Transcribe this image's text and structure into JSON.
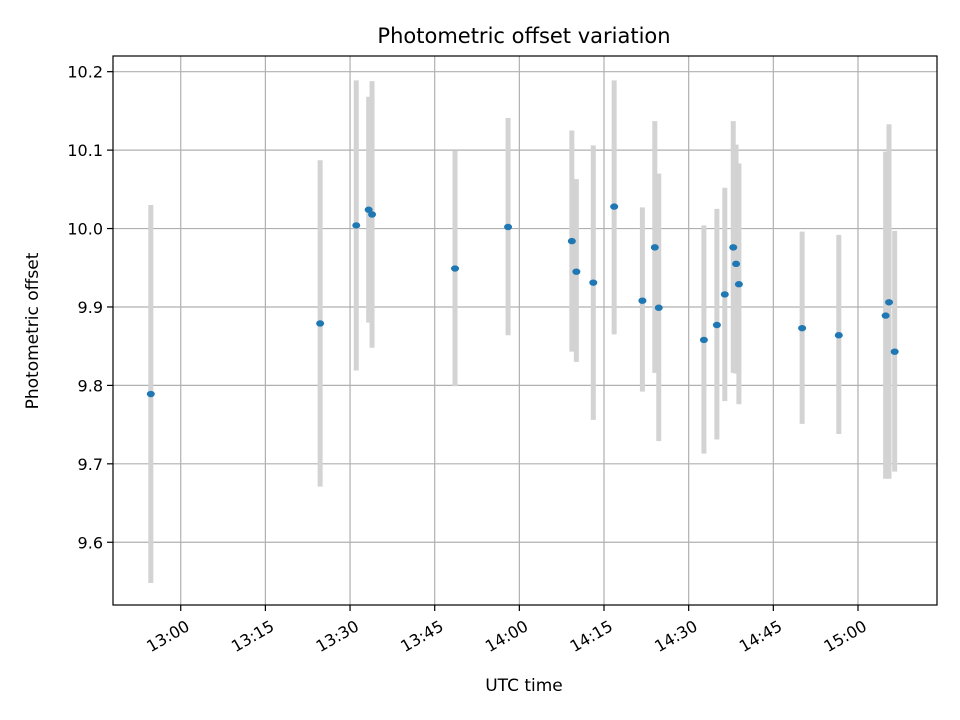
{
  "chart_data": {
    "type": "scatter",
    "title": "Photometric offset variation",
    "xlabel": "UTC time",
    "ylabel": "Photometric offset",
    "x_axis_type": "time",
    "xlim": [
      "12:48",
      "15:14"
    ],
    "ylim": [
      9.52,
      10.22
    ],
    "x_ticks": [
      "13:00",
      "13:15",
      "13:30",
      "13:45",
      "14:00",
      "14:15",
      "14:30",
      "14:45",
      "15:00"
    ],
    "y_ticks": [
      "9.6",
      "9.7",
      "9.8",
      "9.9",
      "10.0",
      "10.1",
      "10.2"
    ],
    "y_tick_values": [
      9.6,
      9.7,
      9.8,
      9.9,
      10.0,
      10.1,
      10.2
    ],
    "grid": true,
    "marker_color": "#1f77b4",
    "errorbar_color": "#d3d3d3",
    "points": [
      {
        "x": "12:54.7",
        "y": 9.789,
        "ylow": 9.548,
        "yhigh": 10.03
      },
      {
        "x": "13:24.7",
        "y": 9.879,
        "ylow": 9.671,
        "yhigh": 10.087
      },
      {
        "x": "13:31.1",
        "y": 10.004,
        "ylow": 9.819,
        "yhigh": 10.189
      },
      {
        "x": "13:33.3",
        "y": 10.024,
        "ylow": 9.88,
        "yhigh": 10.168
      },
      {
        "x": "13:33.9",
        "y": 10.018,
        "ylow": 9.848,
        "yhigh": 10.188
      },
      {
        "x": "13:48.6",
        "y": 9.949,
        "ylow": 9.799,
        "yhigh": 10.099
      },
      {
        "x": "13:58.0",
        "y": 10.002,
        "ylow": 9.864,
        "yhigh": 10.141
      },
      {
        "x": "14:09.3",
        "y": 9.984,
        "ylow": 9.843,
        "yhigh": 10.125
      },
      {
        "x": "14:10.1",
        "y": 9.945,
        "ylow": 9.83,
        "yhigh": 10.063
      },
      {
        "x": "14:13.1",
        "y": 9.931,
        "ylow": 9.756,
        "yhigh": 10.106
      },
      {
        "x": "14:16.8",
        "y": 10.028,
        "ylow": 9.865,
        "yhigh": 10.189
      },
      {
        "x": "14:21.8",
        "y": 9.908,
        "ylow": 9.792,
        "yhigh": 10.027
      },
      {
        "x": "14:24.0",
        "y": 9.976,
        "ylow": 9.816,
        "yhigh": 10.137
      },
      {
        "x": "14:24.7",
        "y": 9.899,
        "ylow": 9.729,
        "yhigh": 10.07
      },
      {
        "x": "14:32.7",
        "y": 9.858,
        "ylow": 9.713,
        "yhigh": 10.004
      },
      {
        "x": "14:35.0",
        "y": 9.877,
        "ylow": 9.731,
        "yhigh": 10.025
      },
      {
        "x": "14:36.4",
        "y": 9.916,
        "ylow": 9.78,
        "yhigh": 10.052
      },
      {
        "x": "14:37.9",
        "y": 9.976,
        "ylow": 9.816,
        "yhigh": 10.137
      },
      {
        "x": "14:38.4",
        "y": 9.955,
        "ylow": 9.815,
        "yhigh": 10.107
      },
      {
        "x": "14:38.9",
        "y": 9.929,
        "ylow": 9.776,
        "yhigh": 10.083
      },
      {
        "x": "14:50.1",
        "y": 9.873,
        "ylow": 9.751,
        "yhigh": 9.996
      },
      {
        "x": "14:56.6",
        "y": 9.864,
        "ylow": 9.738,
        "yhigh": 9.992
      },
      {
        "x": "15:04.9",
        "y": 9.889,
        "ylow": 9.681,
        "yhigh": 10.098
      },
      {
        "x": "15:05.5",
        "y": 9.906,
        "ylow": 9.681,
        "yhigh": 10.133
      },
      {
        "x": "15:06.5",
        "y": 9.843,
        "ylow": 9.69,
        "yhigh": 9.997
      }
    ]
  }
}
